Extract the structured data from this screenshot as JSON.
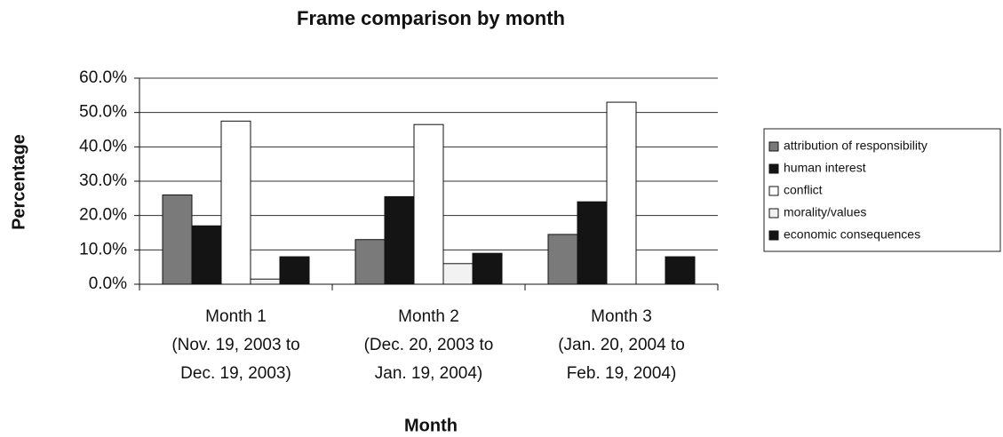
{
  "chart_data": {
    "type": "bar",
    "title": "Frame comparison by month",
    "x_label": "Month",
    "y_label": "Percentage",
    "categories": [
      [
        "Month 1",
        "(Nov. 19, 2003 to",
        "Dec. 19, 2003)"
      ],
      [
        "Month 2",
        "(Dec. 20, 2003 to",
        "Jan. 19, 2004)"
      ],
      [
        "Month 3",
        "(Jan. 20, 2004 to",
        "Feb. 19, 2004)"
      ]
    ],
    "series": [
      {
        "name": "attribution of responsibility",
        "color": "#7a7a7a",
        "values": [
          26,
          13,
          14.5
        ]
      },
      {
        "name": "human interest",
        "color": "#141414",
        "values": [
          17,
          25.5,
          24
        ]
      },
      {
        "name": "conflict",
        "color": "#ffffff",
        "values": [
          47.5,
          46.5,
          53
        ]
      },
      {
        "name": "morality/values",
        "color": "#f2f2f2",
        "values": [
          1.5,
          6,
          0
        ]
      },
      {
        "name": "economic consequences",
        "color": "#141414",
        "values": [
          8,
          9,
          8
        ]
      }
    ],
    "ylim": [
      0,
      60
    ],
    "yticks": [
      {
        "value": 0,
        "label": "0.0%"
      },
      {
        "value": 10,
        "label": "10.0%"
      },
      {
        "value": 20,
        "label": "20.0%"
      },
      {
        "value": 30,
        "label": "30.0%"
      },
      {
        "value": 40,
        "label": "40.0%"
      },
      {
        "value": 50,
        "label": "50.0%"
      },
      {
        "value": 60,
        "label": "60.0%"
      }
    ],
    "grid": true,
    "legend": "right"
  }
}
